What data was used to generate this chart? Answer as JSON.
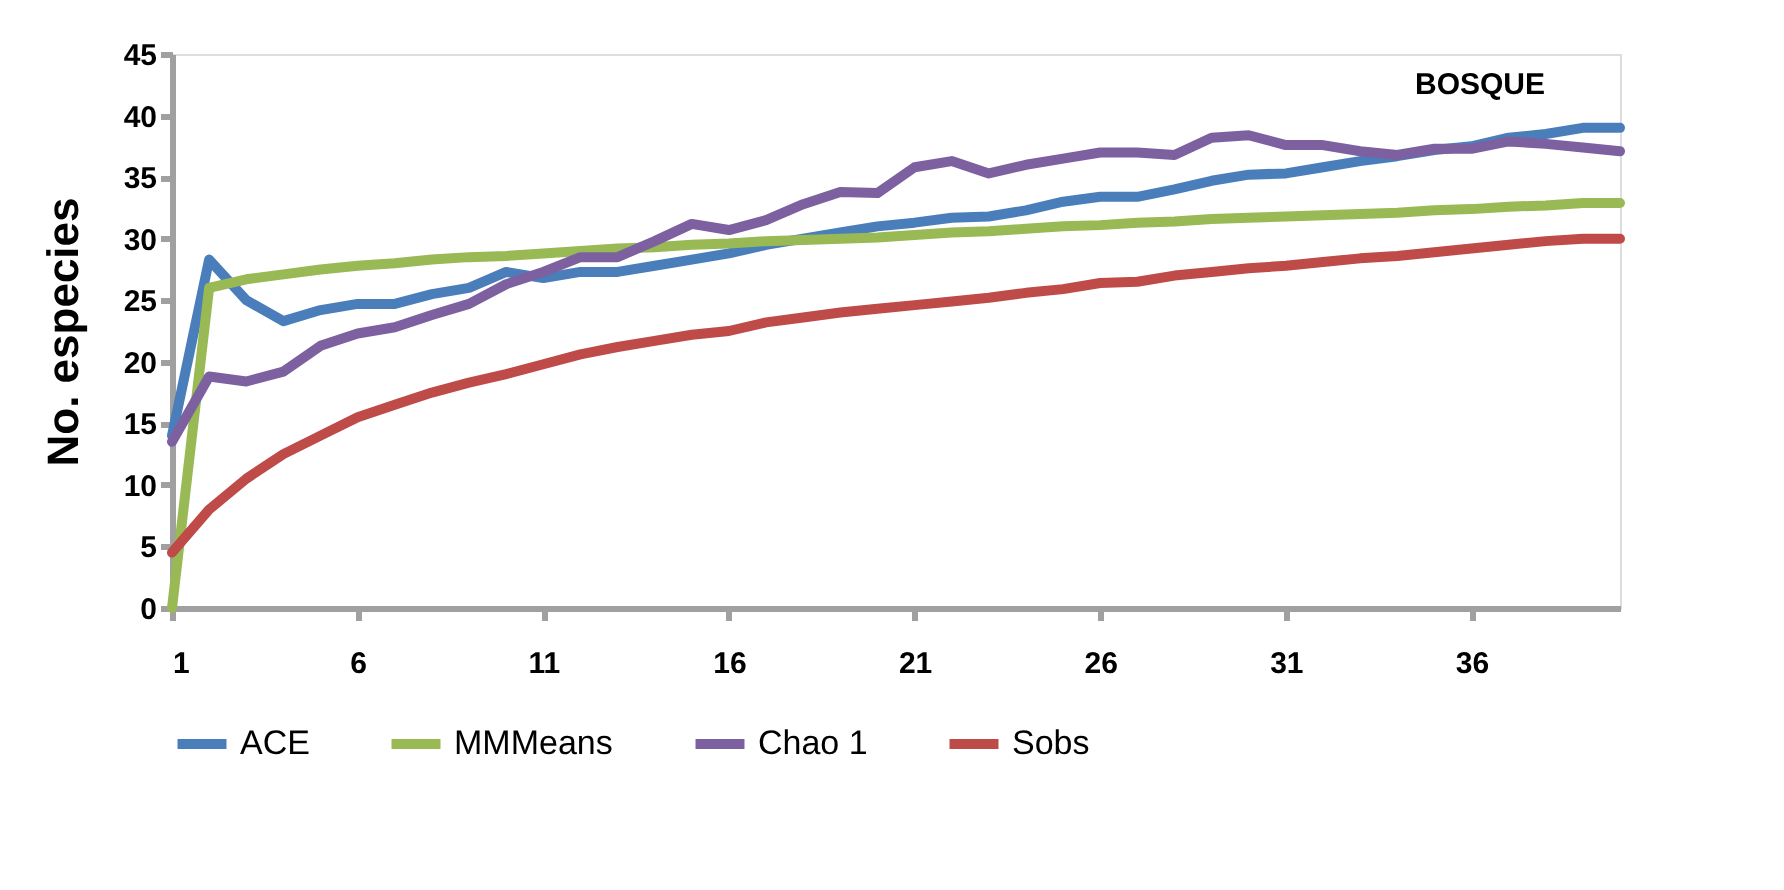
{
  "chart_data": {
    "type": "line",
    "title": "BOSQUE",
    "ylabel": "No. especies",
    "x": [
      1,
      2,
      3,
      4,
      5,
      6,
      7,
      8,
      9,
      10,
      11,
      12,
      13,
      14,
      15,
      16,
      17,
      18,
      19,
      20,
      21,
      22,
      23,
      24,
      25,
      26,
      27,
      28,
      29,
      30,
      31,
      32,
      33,
      34,
      35,
      36,
      37,
      38,
      39,
      40
    ],
    "xlim": [
      1,
      40
    ],
    "xticks": [
      1,
      6,
      11,
      16,
      21,
      26,
      31,
      36
    ],
    "ylim": [
      0,
      45
    ],
    "yticks": [
      0,
      5,
      10,
      15,
      20,
      25,
      30,
      35,
      40,
      45
    ],
    "grid": false,
    "legend": "bottom",
    "marker": "none",
    "line_style": "solid",
    "series": [
      {
        "name": "ACE",
        "color": "#4a7ebb",
        "values": [
          14,
          28.3,
          25,
          23.3,
          24.2,
          24.7,
          24.7,
          25.5,
          26,
          27.3,
          26.8,
          27.3,
          27.3,
          27.8,
          28.3,
          28.8,
          29.5,
          30,
          30.5,
          31,
          31.3,
          31.7,
          31.8,
          32.3,
          33,
          33.4,
          33.4,
          34,
          34.7,
          35.2,
          35.3,
          35.8,
          36.3,
          36.7,
          37.2,
          37.5,
          38.2,
          38.5,
          39,
          39
        ]
      },
      {
        "name": "MMMeans",
        "color": "#98b954",
        "values": [
          0,
          26,
          26.7,
          27.1,
          27.5,
          27.8,
          28,
          28.3,
          28.5,
          28.6,
          28.8,
          29,
          29.2,
          29.3,
          29.5,
          29.6,
          29.8,
          29.9,
          30,
          30.1,
          30.3,
          30.5,
          30.6,
          30.8,
          31,
          31.1,
          31.3,
          31.4,
          31.6,
          31.7,
          31.8,
          31.9,
          32,
          32.1,
          32.3,
          32.4,
          32.6,
          32.7,
          32.9,
          32.9
        ]
      },
      {
        "name": "Chao 1",
        "color": "#7d60a0",
        "values": [
          13.5,
          18.8,
          18.4,
          19.2,
          21.3,
          22.3,
          22.8,
          23.8,
          24.7,
          26.3,
          27.3,
          28.5,
          28.5,
          29.8,
          31.2,
          30.7,
          31.5,
          32.8,
          33.8,
          33.7,
          35.8,
          36.3,
          35.3,
          36,
          36.5,
          37,
          37,
          36.8,
          38.2,
          38.4,
          37.6,
          37.6,
          37.1,
          36.8,
          37.3,
          37.3,
          37.9,
          37.7,
          37.4,
          37.1
        ]
      },
      {
        "name": "Sobs",
        "color": "#be4b48",
        "values": [
          4.5,
          8,
          10.5,
          12.5,
          14,
          15.5,
          16.5,
          17.5,
          18.3,
          19,
          19.8,
          20.6,
          21.2,
          21.7,
          22.2,
          22.5,
          23.2,
          23.6,
          24,
          24.3,
          24.6,
          24.9,
          25.2,
          25.6,
          25.9,
          26.4,
          26.5,
          27,
          27.3,
          27.6,
          27.8,
          28.1,
          28.4,
          28.6,
          28.9,
          29.2,
          29.5,
          29.8,
          30,
          30
        ]
      }
    ]
  }
}
